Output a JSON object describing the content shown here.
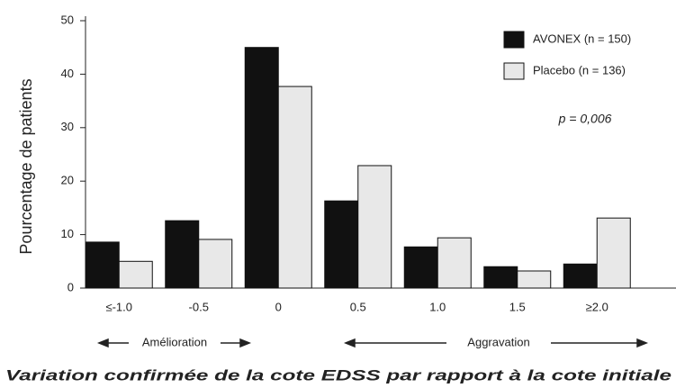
{
  "chart_data": {
    "type": "bar",
    "categories": [
      "≤-1.0",
      "-0.5",
      "0",
      "0.5",
      "1.0",
      "1.5",
      "≥2.0"
    ],
    "series": [
      {
        "name": "AVONEX (n = 150)",
        "color": "#111111",
        "values": [
          8.6,
          12.6,
          45,
          16.3,
          7.7,
          4.0,
          4.5
        ]
      },
      {
        "name": "Placebo (n = 136)",
        "color": "#e8e8e8",
        "values": [
          5.0,
          9.1,
          37.7,
          22.9,
          9.4,
          3.2,
          13.1
        ]
      }
    ],
    "ylim": [
      0,
      50
    ],
    "yticks": [
      0,
      10,
      20,
      30,
      40,
      50
    ],
    "ylabel": "Pourcentage de patients",
    "xlabel": "Variation confirmée de la cote EDSS par rapport à la cote initiale",
    "annotations": [
      "p = 0,006",
      "Amélioration",
      "Aggravation"
    ]
  }
}
